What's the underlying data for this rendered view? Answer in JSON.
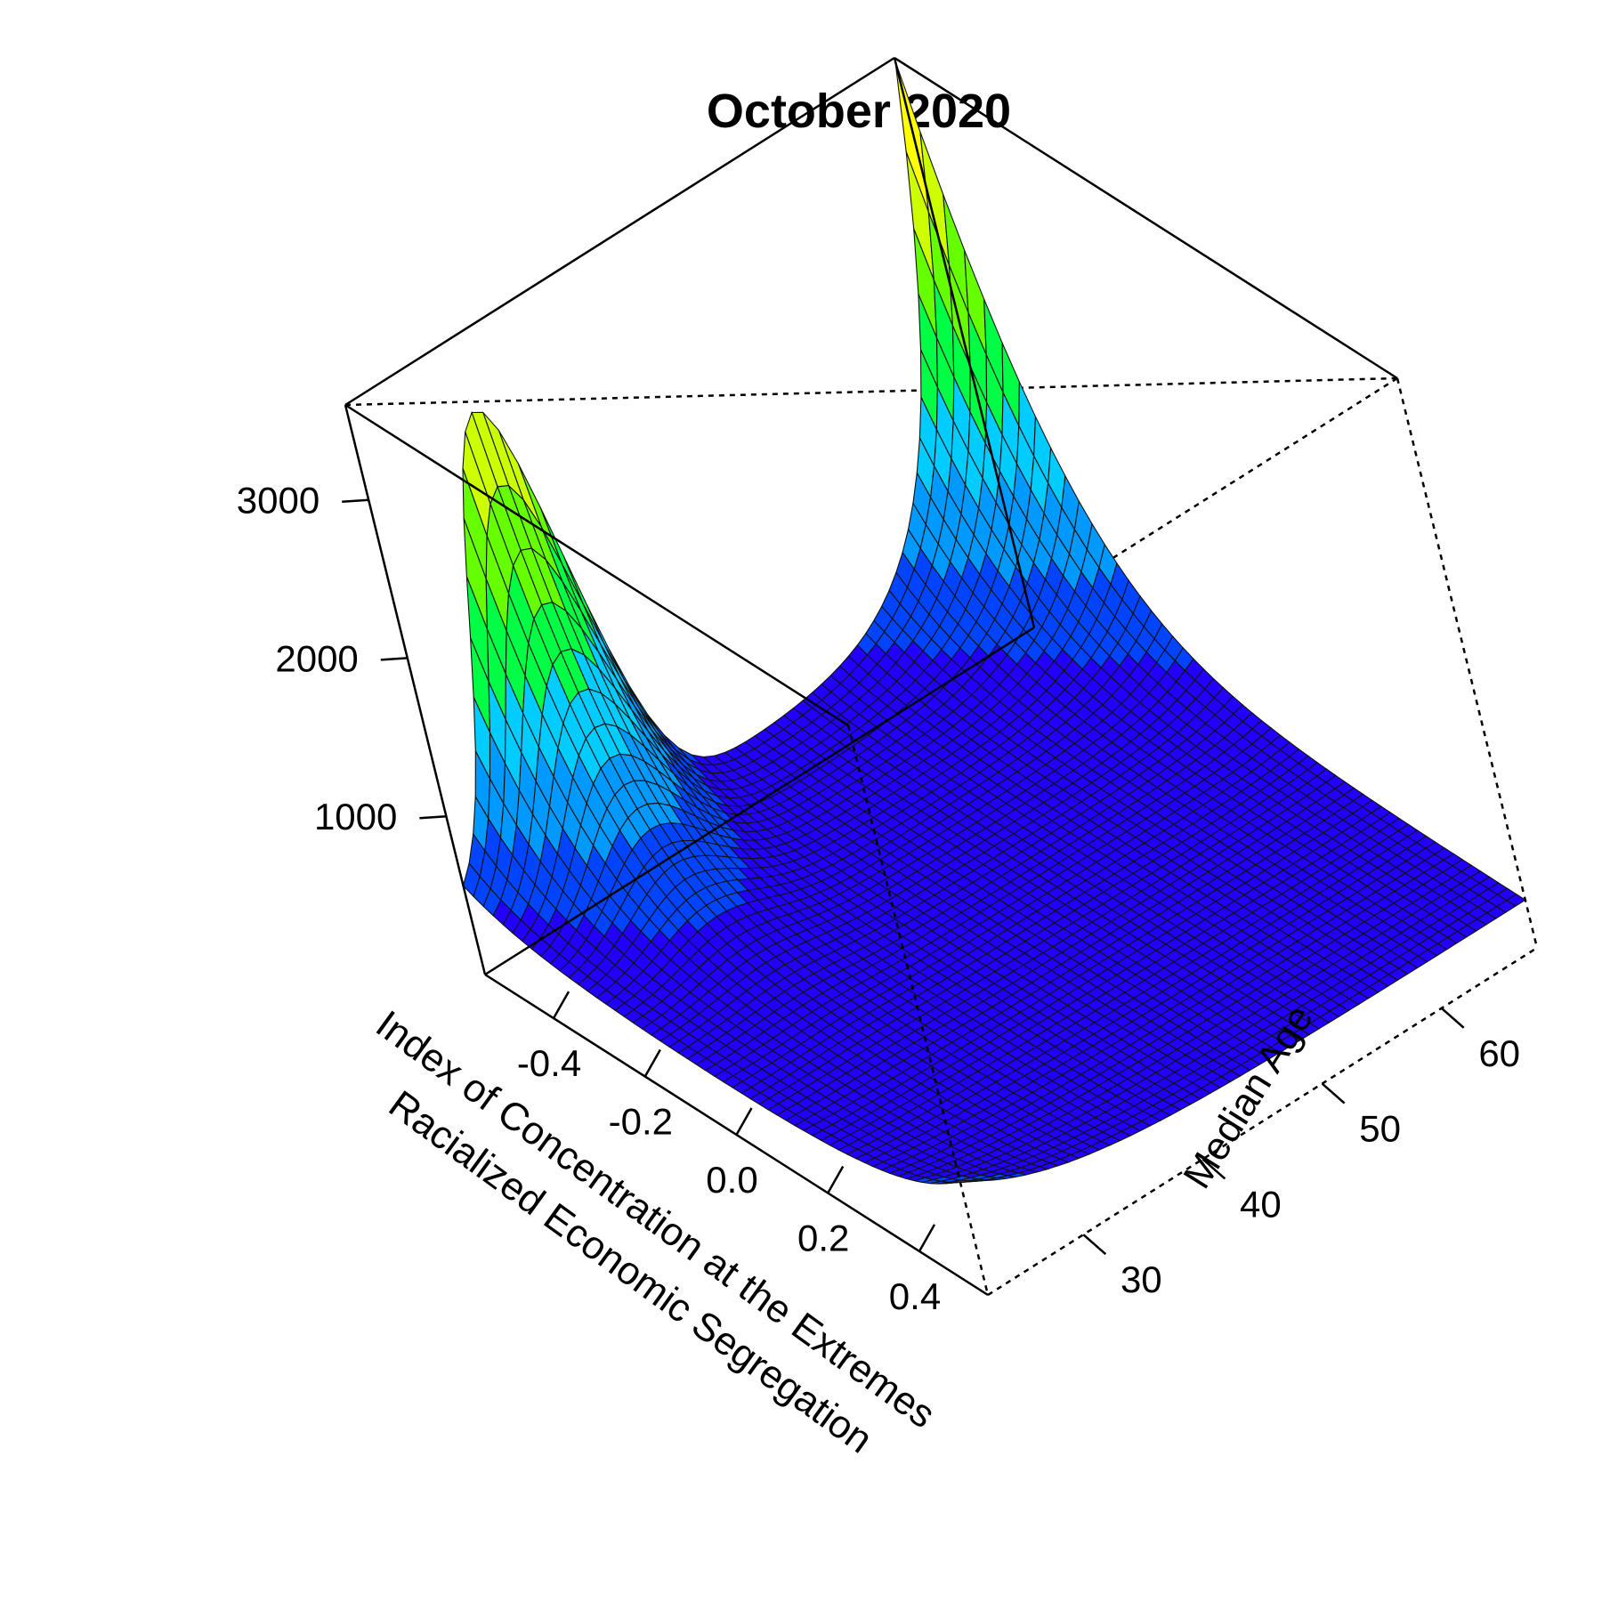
{
  "chart_data": {
    "type": "surface3d",
    "title": "October 2020",
    "x_axis": {
      "label_line1": "Index of Concentration at the Extremes",
      "label_line2": "Racialized Economic Segregation",
      "range": [
        -0.55,
        0.55
      ],
      "ticks": [
        "-0.4",
        "-0.2",
        "0.0",
        "0.2",
        "0.4"
      ],
      "tick_values": [
        -0.4,
        -0.2,
        0.0,
        0.2,
        0.4
      ]
    },
    "y_axis": {
      "label": "Median Age",
      "range": [
        22,
        68
      ],
      "ticks": [
        "30",
        "40",
        "50",
        "60"
      ],
      "tick_values": [
        30,
        40,
        50,
        60
      ]
    },
    "z_axis": {
      "label": "",
      "range": [
        0,
        3600
      ],
      "ticks": [
        "1000",
        "2000",
        "3000"
      ],
      "tick_values": [
        1000,
        2000,
        3000
      ]
    },
    "color_scale": [
      "#2200ff",
      "#0044ff",
      "#0099ff",
      "#00ccff",
      "#00ff44",
      "#66ff00",
      "#ccff00",
      "#ffff00"
    ],
    "peaks": [
      {
        "x": -0.55,
        "y": 30,
        "z": 3050
      },
      {
        "x": -0.55,
        "y": 68,
        "z": 3580
      }
    ],
    "floor_z": 300
  }
}
